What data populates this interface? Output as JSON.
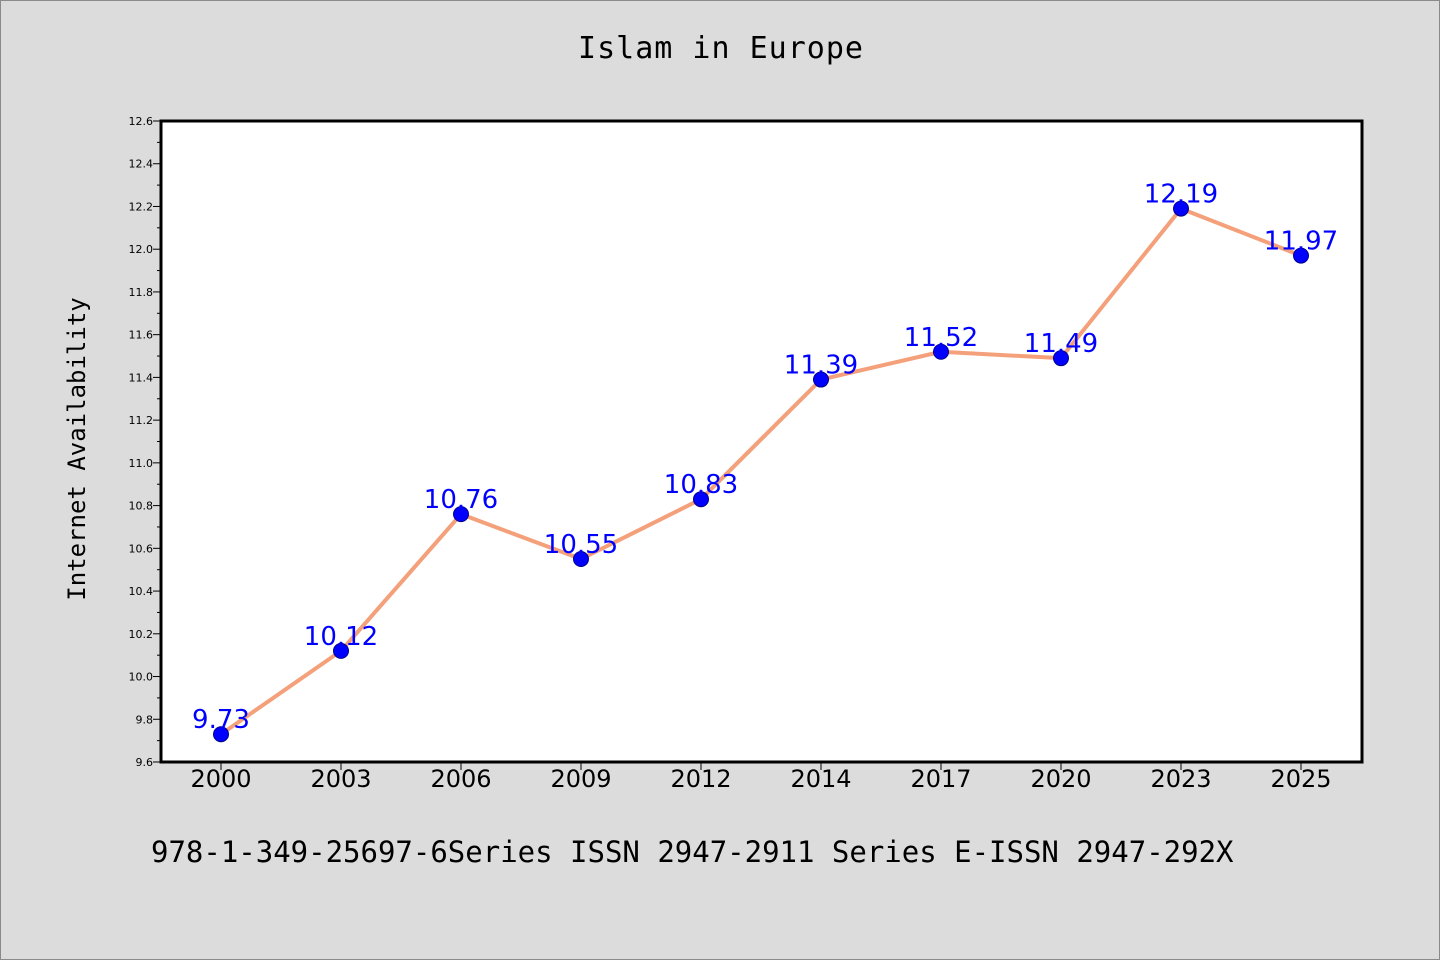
{
  "chart_data": {
    "type": "line",
    "title": "Islam in Europe",
    "xlabel": "",
    "ylabel": "Internet Availability",
    "categories": [
      "2000",
      "2003",
      "2006",
      "2009",
      "2012",
      "2014",
      "2017",
      "2020",
      "2023",
      "2025"
    ],
    "series": [
      {
        "values": [
          9.73,
          10.12,
          10.76,
          10.55,
          10.83,
          11.39,
          11.52,
          11.49,
          12.19,
          11.97
        ]
      }
    ],
    "data_labels": [
      "9.73",
      "10.12",
      "10.76",
      "10.55",
      "10.83",
      "11.39",
      "11.52",
      "11.49",
      "12.19",
      "11.97"
    ],
    "ylim": [
      9.6,
      12.6
    ],
    "yticks": [
      "9.6",
      "9.8",
      "10.0",
      "10.2",
      "10.4",
      "10.6",
      "10.8",
      "11.0",
      "11.2",
      "11.4",
      "11.6",
      "11.8",
      "12.0",
      "12.2",
      "12.4",
      "12.6"
    ],
    "grid": false,
    "legend": "none",
    "colors": {
      "line": "#f4a07a",
      "marker": "#0000ff",
      "marker_edge": "#00008b",
      "label": "#0000ff"
    }
  },
  "footer_note": "978-1-349-25697-6Series ISSN 2947-2911 Series E-ISSN 2947-292X"
}
